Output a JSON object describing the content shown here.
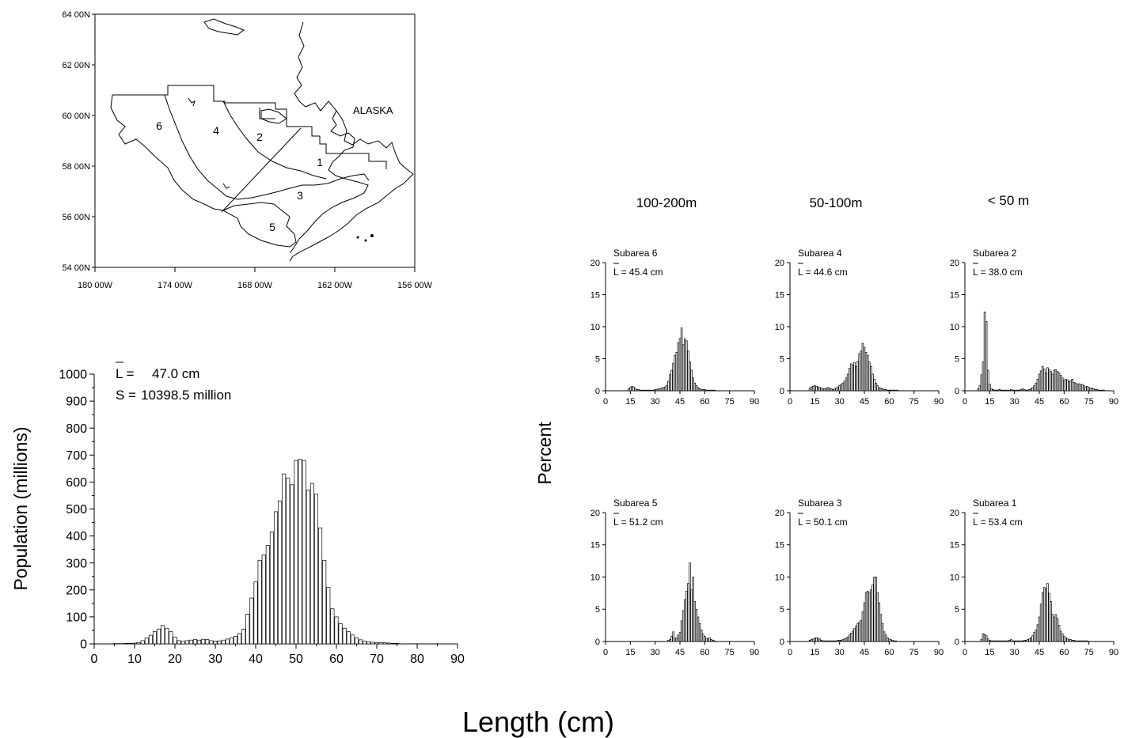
{
  "figure": {
    "xlabel": "Length (cm)",
    "ylabel_small": "Percent"
  },
  "map": {
    "label": "ALASKA",
    "lat_ticks": [
      "64 00N",
      "62 00N",
      "60 00N",
      "58 00N",
      "56 00N",
      "54 00N"
    ],
    "lon_ticks": [
      "180 00W",
      "174 00W",
      "168 00W",
      "162 00W",
      "156 00W"
    ],
    "subarea_labels": [
      "1",
      "2",
      "3",
      "4",
      "5",
      "6"
    ]
  },
  "depth_headers": [
    "100-200m",
    "50-100m",
    "< 50 m"
  ],
  "chart_data": [
    {
      "type": "bar",
      "id": "total",
      "title": "",
      "xlabel": "Length (cm)",
      "ylabel": "Population (millions)",
      "xlim": [
        0,
        90
      ],
      "ylim": [
        0,
        1000
      ],
      "xticks": [
        0,
        10,
        20,
        30,
        40,
        50,
        60,
        70,
        80,
        90
      ],
      "yticks": [
        0,
        100,
        200,
        300,
        400,
        500,
        600,
        700,
        800,
        900,
        1000
      ],
      "annotations": {
        "mean_symbol": "L =",
        "mean_value": "47.0  cm",
        "sum_symbol": "S =",
        "sum_value": "10398.5  million"
      },
      "x": [
        5,
        6,
        7,
        8,
        9,
        10,
        11,
        12,
        13,
        14,
        15,
        16,
        17,
        18,
        19,
        20,
        21,
        22,
        23,
        24,
        25,
        26,
        27,
        28,
        29,
        30,
        31,
        32,
        33,
        34,
        35,
        36,
        37,
        38,
        39,
        40,
        41,
        42,
        43,
        44,
        45,
        46,
        47,
        48,
        49,
        50,
        51,
        52,
        53,
        54,
        55,
        56,
        57,
        58,
        59,
        60,
        61,
        62,
        63,
        64,
        65,
        66,
        67,
        68,
        69,
        70,
        71,
        72,
        73,
        74,
        75
      ],
      "values": [
        1,
        1,
        1,
        2,
        2,
        3,
        5,
        12,
        22,
        32,
        45,
        55,
        68,
        58,
        45,
        25,
        12,
        10,
        12,
        14,
        16,
        14,
        17,
        16,
        12,
        10,
        11,
        14,
        18,
        22,
        28,
        38,
        55,
        110,
        170,
        230,
        310,
        330,
        365,
        415,
        490,
        530,
        630,
        615,
        590,
        680,
        685,
        680,
        570,
        595,
        555,
        430,
        310,
        210,
        130,
        100,
        75,
        58,
        45,
        33,
        22,
        15,
        10,
        8,
        6,
        5,
        4,
        4,
        3,
        2,
        2
      ]
    },
    {
      "type": "bar",
      "id": "sub6",
      "title": "Subarea 6",
      "mean_label": "L = 45.4  cm",
      "xlim": [
        0,
        90
      ],
      "ylim": [
        0,
        20
      ],
      "xticks": [
        0,
        15,
        30,
        45,
        60,
        75,
        90
      ],
      "yticks": [
        0,
        5,
        10,
        15,
        20
      ],
      "x": [
        14,
        15,
        16,
        17,
        18,
        19,
        20,
        21,
        22,
        23,
        24,
        25,
        26,
        27,
        28,
        29,
        30,
        31,
        32,
        33,
        34,
        35,
        36,
        37,
        38,
        39,
        40,
        41,
        42,
        43,
        44,
        45,
        46,
        47,
        48,
        49,
        50,
        51,
        52,
        53,
        54,
        55,
        56,
        57,
        58,
        59,
        60,
        61,
        62,
        63,
        64,
        65,
        66
      ],
      "values": [
        0.3,
        0.5,
        0.7,
        0.6,
        0.3,
        0.2,
        0.2,
        0.1,
        0.1,
        0.1,
        0.1,
        0.1,
        0.1,
        0.1,
        0.1,
        0.1,
        0.2,
        0.2,
        0.3,
        0.3,
        0.4,
        0.5,
        0.6,
        0.8,
        1.5,
        2.5,
        3.2,
        4.3,
        5.5,
        6.0,
        7.5,
        8.2,
        9.8,
        7.2,
        8.1,
        7.8,
        6.2,
        4.5,
        3.2,
        2.0,
        1.2,
        0.8,
        0.5,
        0.3,
        0.2,
        0.2,
        0.2,
        0.1,
        0.1,
        0.1,
        0.1,
        0.1,
        0.1
      ]
    },
    {
      "type": "bar",
      "id": "sub4",
      "title": "Subarea 4",
      "mean_label": "L = 44.6  cm",
      "xlim": [
        0,
        90
      ],
      "ylim": [
        0,
        20
      ],
      "xticks": [
        0,
        15,
        30,
        45,
        60,
        75,
        90
      ],
      "yticks": [
        0,
        5,
        10,
        15,
        20
      ],
      "x": [
        12,
        13,
        14,
        15,
        16,
        17,
        18,
        19,
        20,
        21,
        22,
        23,
        24,
        25,
        26,
        27,
        28,
        29,
        30,
        31,
        32,
        33,
        34,
        35,
        36,
        37,
        38,
        39,
        40,
        41,
        42,
        43,
        44,
        45,
        46,
        47,
        48,
        49,
        50,
        51,
        52,
        53,
        54,
        55,
        56,
        57,
        58,
        59,
        60,
        61,
        62,
        63,
        64,
        65
      ],
      "values": [
        0.4,
        0.6,
        0.7,
        0.8,
        0.7,
        0.6,
        0.5,
        0.4,
        0.3,
        0.3,
        0.4,
        0.5,
        0.4,
        0.3,
        0.2,
        0.3,
        0.4,
        0.6,
        0.8,
        1.0,
        1.2,
        1.5,
        2.0,
        2.6,
        3.5,
        4.2,
        4.0,
        4.4,
        3.8,
        4.6,
        5.8,
        6.2,
        7.4,
        6.8,
        6.0,
        5.5,
        4.5,
        3.8,
        2.6,
        1.8,
        1.2,
        0.8,
        0.5,
        0.4,
        0.3,
        0.2,
        0.2,
        0.1,
        0.1,
        0.1,
        0.1,
        0.1,
        0.1,
        0.1
      ]
    },
    {
      "type": "bar",
      "id": "sub2",
      "title": "Subarea 2",
      "mean_label": "L = 38.0  cm",
      "xlim": [
        0,
        90
      ],
      "ylim": [
        0,
        20
      ],
      "xticks": [
        0,
        15,
        30,
        45,
        60,
        75,
        90
      ],
      "yticks": [
        0,
        5,
        10,
        15,
        20
      ],
      "x": [
        8,
        9,
        10,
        11,
        12,
        13,
        14,
        15,
        16,
        17,
        18,
        19,
        20,
        21,
        22,
        23,
        24,
        25,
        26,
        27,
        28,
        29,
        30,
        31,
        32,
        33,
        34,
        35,
        36,
        37,
        38,
        39,
        40,
        41,
        42,
        43,
        44,
        45,
        46,
        47,
        48,
        49,
        50,
        51,
        52,
        53,
        54,
        55,
        56,
        57,
        58,
        59,
        60,
        61,
        62,
        63,
        64,
        65,
        66,
        67,
        68,
        69,
        70,
        71,
        72,
        73,
        74,
        75,
        76,
        77,
        78,
        79,
        80,
        81,
        82,
        83,
        84
      ],
      "values": [
        0.3,
        0.8,
        2.5,
        4.5,
        12.3,
        10.8,
        3.2,
        1.0,
        0.3,
        0.2,
        0.1,
        0.1,
        0.1,
        0.2,
        0.1,
        0.1,
        0.1,
        0.1,
        0.1,
        0.1,
        0.2,
        0.1,
        0.1,
        0.1,
        0.1,
        0.1,
        0.2,
        0.3,
        0.2,
        0.1,
        0.1,
        0.2,
        0.3,
        0.5,
        0.8,
        1.2,
        1.8,
        2.6,
        3.1,
        3.8,
        3.4,
        2.8,
        3.6,
        3.3,
        3.0,
        2.6,
        3.2,
        3.3,
        3.0,
        2.8,
        2.4,
        2.0,
        1.6,
        1.8,
        1.7,
        1.4,
        1.6,
        1.8,
        1.3,
        1.2,
        1.0,
        1.1,
        0.9,
        1.0,
        0.8,
        0.6,
        0.7,
        0.5,
        0.4,
        0.4,
        0.3,
        0.2,
        0.2,
        0.1,
        0.1,
        0.1,
        0.1
      ]
    },
    {
      "type": "bar",
      "id": "sub5",
      "title": "Subarea 5",
      "mean_label": "L = 51.2  cm",
      "xlim": [
        0,
        90
      ],
      "ylim": [
        0,
        20
      ],
      "xticks": [
        0,
        15,
        30,
        45,
        60,
        75,
        90
      ],
      "yticks": [
        0,
        5,
        10,
        15,
        20
      ],
      "x": [
        38,
        39,
        40,
        41,
        42,
        43,
        44,
        45,
        46,
        47,
        48,
        49,
        50,
        51,
        52,
        53,
        54,
        55,
        56,
        57,
        58,
        59,
        60,
        61,
        62,
        63,
        64,
        65,
        66
      ],
      "values": [
        0.2,
        0.3,
        0.8,
        1.5,
        0.5,
        0.6,
        1.0,
        1.4,
        3.2,
        4.8,
        6.5,
        7.8,
        9.0,
        12.2,
        8.0,
        10.0,
        6.2,
        5.0,
        3.8,
        2.8,
        1.8,
        1.2,
        0.8,
        0.5,
        0.4,
        0.6,
        0.3,
        0.2,
        0.1
      ]
    },
    {
      "type": "bar",
      "id": "sub3",
      "title": "Subarea 3",
      "mean_label": "L = 50.1  cm",
      "xlim": [
        0,
        90
      ],
      "ylim": [
        0,
        20
      ],
      "xticks": [
        0,
        15,
        30,
        45,
        60,
        75,
        90
      ],
      "yticks": [
        0,
        5,
        10,
        15,
        20
      ],
      "x": [
        12,
        13,
        14,
        15,
        16,
        17,
        18,
        19,
        20,
        21,
        22,
        23,
        24,
        25,
        26,
        27,
        28,
        29,
        30,
        31,
        32,
        33,
        34,
        35,
        36,
        37,
        38,
        39,
        40,
        41,
        42,
        43,
        44,
        45,
        46,
        47,
        48,
        49,
        50,
        51,
        52,
        53,
        54,
        55,
        56,
        57,
        58,
        59,
        60,
        61,
        62,
        63,
        64
      ],
      "values": [
        0.2,
        0.3,
        0.4,
        0.5,
        0.6,
        0.5,
        0.4,
        0.2,
        0.1,
        0.1,
        0.1,
        0.1,
        0.1,
        0.1,
        0.1,
        0.1,
        0.1,
        0.2,
        0.2,
        0.2,
        0.3,
        0.4,
        0.5,
        0.7,
        1.0,
        1.3,
        1.6,
        2.0,
        2.4,
        2.8,
        3.0,
        3.3,
        4.6,
        6.0,
        7.6,
        7.8,
        7.6,
        8.0,
        8.8,
        10.0,
        10.0,
        7.6,
        6.0,
        4.2,
        2.8,
        1.5,
        1.0,
        0.6,
        0.4,
        0.3,
        0.2,
        0.1,
        0.1
      ]
    },
    {
      "type": "bar",
      "id": "sub1",
      "title": "Subarea 1",
      "mean_label": "L = 53.4  cm",
      "xlim": [
        0,
        90
      ],
      "ylim": [
        0,
        20
      ],
      "xticks": [
        0,
        15,
        30,
        45,
        60,
        75,
        90
      ],
      "yticks": [
        0,
        5,
        10,
        15,
        20
      ],
      "x": [
        10,
        11,
        12,
        13,
        14,
        15,
        16,
        17,
        18,
        19,
        20,
        21,
        22,
        23,
        24,
        25,
        26,
        27,
        28,
        29,
        30,
        31,
        32,
        33,
        34,
        35,
        36,
        37,
        38,
        39,
        40,
        41,
        42,
        43,
        44,
        45,
        46,
        47,
        48,
        49,
        50,
        51,
        52,
        53,
        54,
        55,
        56,
        57,
        58,
        59,
        60,
        61,
        62,
        63,
        64,
        65,
        66,
        67,
        68,
        69,
        70,
        71,
        72,
        73,
        74
      ],
      "values": [
        0.3,
        1.2,
        1.1,
        0.9,
        0.4,
        0.2,
        0.1,
        0.1,
        0.1,
        0.1,
        0.1,
        0.1,
        0.1,
        0.1,
        0.1,
        0.1,
        0.1,
        0.2,
        0.3,
        0.1,
        0.1,
        0.1,
        0.1,
        0.1,
        0.1,
        0.1,
        0.2,
        0.2,
        0.3,
        0.4,
        0.6,
        0.9,
        1.4,
        1.8,
        2.6,
        3.8,
        5.8,
        7.6,
        8.4,
        8.2,
        9.0,
        7.5,
        6.2,
        4.2,
        3.8,
        4.2,
        3.6,
        2.5,
        1.6,
        1.2,
        0.8,
        0.6,
        0.4,
        0.3,
        0.3,
        0.2,
        0.2,
        0.1,
        0.1,
        0.1,
        0.1,
        0.1,
        0.1,
        0.1,
        0.1
      ]
    }
  ]
}
